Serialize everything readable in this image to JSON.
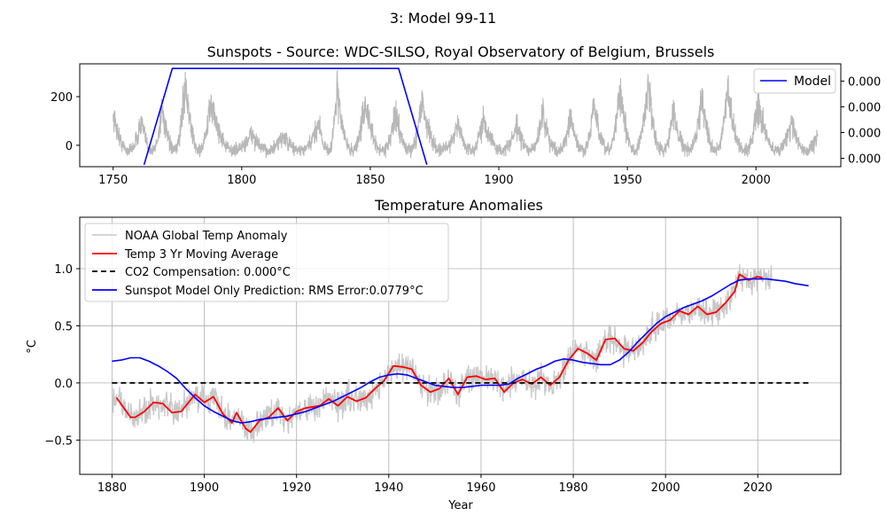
{
  "figure": {
    "suptitle": "3: Model 99-11"
  },
  "chart_data": [
    {
      "type": "line",
      "title": "Sunspots -  Source: WDC-SILSO, Royal Observatory of Belgium, Brussels",
      "xlabel": "",
      "ylabel": "",
      "xlim": [
        1737,
        2033
      ],
      "ylim": [
        -88,
        335
      ],
      "xticks": [
        1750,
        1800,
        1850,
        1900,
        1950,
        2000
      ],
      "yticks": [
        0,
        200
      ],
      "right_yticklabels": [
        "0.000",
        "0.000",
        "0.000",
        "0.000"
      ],
      "grid": false,
      "legend": "top-right",
      "colors": {
        "sunspots": "#b8b8b8",
        "model": "#0000ff"
      },
      "series": [
        {
          "name": "",
          "role": "sunspot-record",
          "cycle_peaks": [
            [
              1750,
              150
            ],
            [
              1761,
              120
            ],
            [
              1769,
              180
            ],
            [
              1778,
              290
            ],
            [
              1788,
              200
            ],
            [
              1804,
              70
            ],
            [
              1816,
              60
            ],
            [
              1830,
              120
            ],
            [
              1837,
              250
            ],
            [
              1848,
              200
            ],
            [
              1860,
              150
            ],
            [
              1870,
              210
            ],
            [
              1884,
              110
            ],
            [
              1894,
              140
            ],
            [
              1907,
              100
            ],
            [
              1917,
              160
            ],
            [
              1928,
              130
            ],
            [
              1937,
              190
            ],
            [
              1947,
              250
            ],
            [
              1958,
              280
            ],
            [
              1968,
              160
            ],
            [
              1979,
              230
            ],
            [
              1989,
              240
            ],
            [
              2001,
              190
            ],
            [
              2014,
              120
            ],
            [
              2024,
              60
            ]
          ]
        },
        {
          "name": "Model",
          "x": [
            1762,
            1773,
            1861,
            1872
          ],
          "y": [
            -80,
            316,
            316,
            -80
          ]
        }
      ]
    },
    {
      "type": "line",
      "title": "Temperature Anomalies",
      "xlabel": "Year",
      "ylabel": "°C",
      "xlim": [
        1873,
        2038
      ],
      "ylim": [
        -0.8,
        1.45
      ],
      "xticks": [
        1880,
        1900,
        1920,
        1940,
        1960,
        1980,
        2000,
        2020
      ],
      "yticks": [
        -0.5,
        0.0,
        0.5,
        1.0
      ],
      "ytick_labels": [
        "−0.5",
        "0.0",
        "0.5",
        "1.0"
      ],
      "grid": true,
      "legend": "top-left",
      "colors": {
        "noaa": "#c8c8c8",
        "moving": "#ff0000",
        "co2": "#000000",
        "model": "#0000ff"
      },
      "series": [
        {
          "name": "NOAA Global Temp Anomaly",
          "x_start": 1880,
          "x_end": 2023,
          "samples_per_year": 12
        },
        {
          "name": "Temp 3 Yr Moving Average",
          "x": [
            1881,
            1884,
            1885,
            1887,
            1889,
            1891,
            1893,
            1895,
            1898,
            1900,
            1902,
            1904,
            1906,
            1907,
            1909,
            1910,
            1912,
            1914,
            1916,
            1918,
            1920,
            1922,
            1925,
            1927,
            1929,
            1931,
            1933,
            1935,
            1937,
            1939,
            1941,
            1943,
            1945,
            1947,
            1949,
            1951,
            1953,
            1955,
            1957,
            1959,
            1961,
            1963,
            1965,
            1967,
            1969,
            1971,
            1973,
            1975,
            1977,
            1979,
            1981,
            1983,
            1985,
            1987,
            1989,
            1991,
            1993,
            1995,
            1997,
            1999,
            2001,
            2003,
            2005,
            2007,
            2009,
            2011,
            2013,
            2015,
            2016,
            2018,
            2020,
            2021
          ],
          "y": [
            -0.13,
            -0.3,
            -0.3,
            -0.25,
            -0.17,
            -0.18,
            -0.26,
            -0.25,
            -0.1,
            -0.17,
            -0.12,
            -0.27,
            -0.35,
            -0.26,
            -0.4,
            -0.43,
            -0.33,
            -0.3,
            -0.22,
            -0.33,
            -0.25,
            -0.22,
            -0.2,
            -0.14,
            -0.2,
            -0.12,
            -0.16,
            -0.13,
            -0.05,
            0.02,
            0.15,
            0.14,
            0.12,
            -0.02,
            -0.08,
            -0.05,
            0.04,
            -0.1,
            0.05,
            0.06,
            0.03,
            0.04,
            -0.08,
            0.0,
            0.03,
            -0.01,
            0.05,
            -0.02,
            0.05,
            0.2,
            0.3,
            0.26,
            0.2,
            0.38,
            0.39,
            0.3,
            0.28,
            0.35,
            0.45,
            0.52,
            0.55,
            0.63,
            0.6,
            0.67,
            0.6,
            0.62,
            0.7,
            0.8,
            0.95,
            0.9,
            0.93,
            0.92
          ]
        },
        {
          "name": "CO2 Compensation: 0.000°C",
          "x": [
            1880,
            2031
          ],
          "y": [
            0.0,
            0.0
          ]
        },
        {
          "name": "Sunspot Model Only Prediction: RMS Error:0.0779°C",
          "x": [
            1880,
            1882,
            1884,
            1886,
            1888,
            1890,
            1892,
            1894,
            1896,
            1898,
            1900,
            1902,
            1904,
            1906,
            1908,
            1910,
            1912,
            1914,
            1916,
            1918,
            1920,
            1922,
            1924,
            1926,
            1928,
            1930,
            1932,
            1934,
            1936,
            1938,
            1940,
            1942,
            1944,
            1946,
            1948,
            1950,
            1952,
            1954,
            1956,
            1958,
            1960,
            1962,
            1964,
            1966,
            1968,
            1970,
            1972,
            1974,
            1976,
            1978,
            1980,
            1982,
            1984,
            1986,
            1988,
            1990,
            1992,
            1994,
            1996,
            1998,
            2000,
            2002,
            2004,
            2006,
            2008,
            2010,
            2012,
            2014,
            2016,
            2018,
            2020,
            2022,
            2024,
            2026,
            2028,
            2031
          ],
          "y": [
            0.19,
            0.2,
            0.22,
            0.22,
            0.19,
            0.15,
            0.1,
            0.04,
            -0.05,
            -0.13,
            -0.2,
            -0.25,
            -0.29,
            -0.33,
            -0.35,
            -0.34,
            -0.32,
            -0.31,
            -0.3,
            -0.29,
            -0.27,
            -0.25,
            -0.22,
            -0.19,
            -0.16,
            -0.12,
            -0.08,
            -0.04,
            0.01,
            0.05,
            0.07,
            0.08,
            0.07,
            0.04,
            0.01,
            -0.02,
            -0.03,
            -0.04,
            -0.04,
            -0.03,
            -0.02,
            -0.02,
            -0.02,
            -0.01,
            0.04,
            0.08,
            0.12,
            0.15,
            0.19,
            0.21,
            0.2,
            0.18,
            0.17,
            0.16,
            0.16,
            0.2,
            0.27,
            0.36,
            0.44,
            0.52,
            0.58,
            0.62,
            0.66,
            0.69,
            0.72,
            0.76,
            0.81,
            0.86,
            0.9,
            0.91,
            0.91,
            0.91,
            0.9,
            0.89,
            0.87,
            0.85
          ]
        }
      ]
    }
  ]
}
